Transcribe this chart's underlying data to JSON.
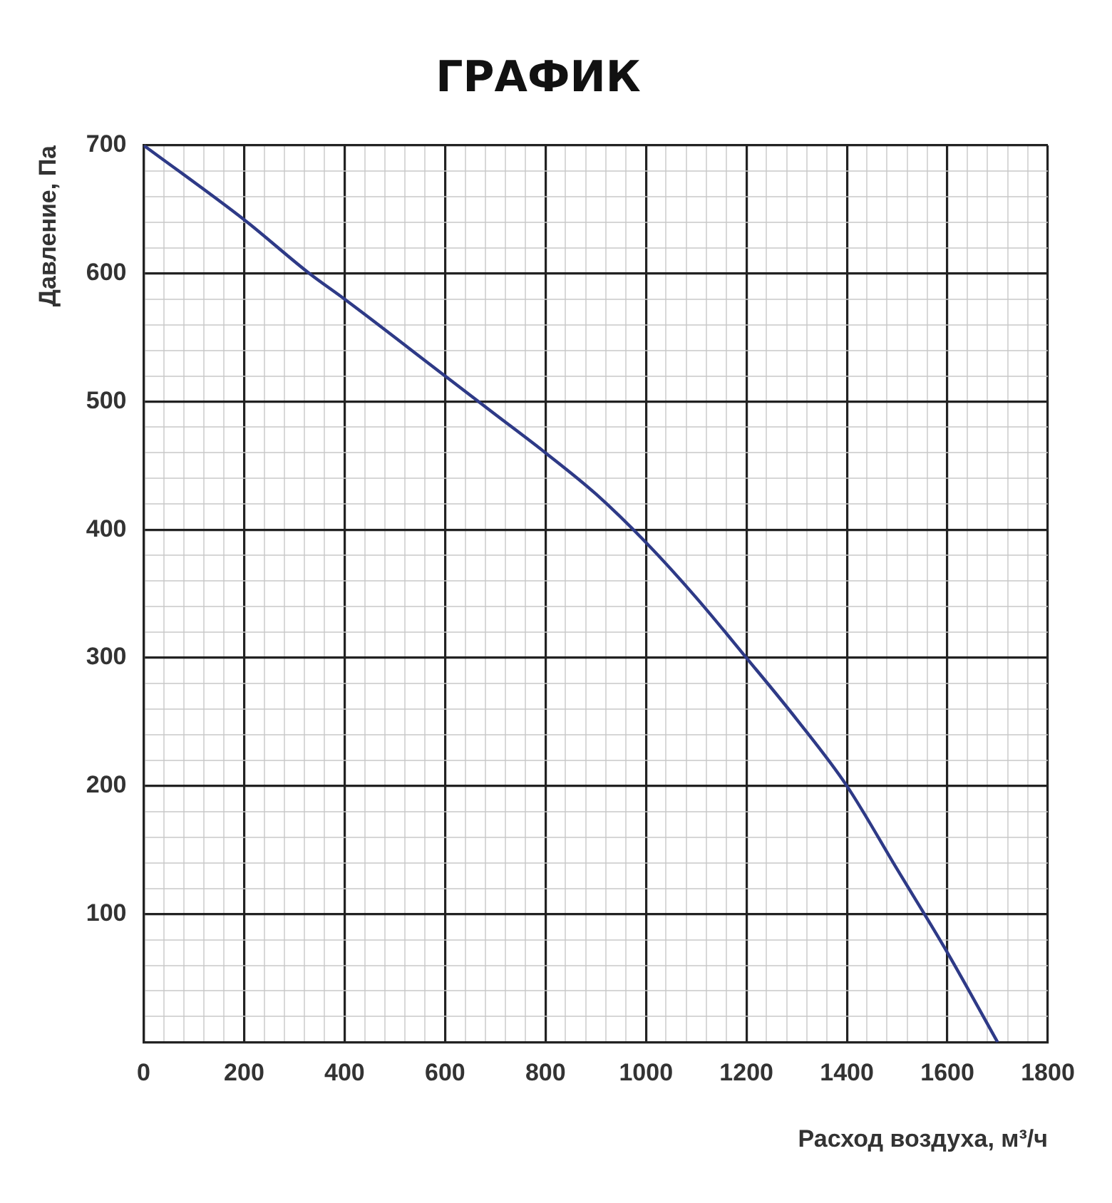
{
  "chart_data": {
    "type": "line",
    "title": "ГРАФИК",
    "xlabel": "Расход воздуха, м³/ч",
    "ylabel": "Давление, Па",
    "x": [
      0,
      200,
      330,
      400,
      600,
      700,
      800,
      900,
      1000,
      1100,
      1200,
      1300,
      1400,
      1500,
      1600,
      1700
    ],
    "series": [
      {
        "color": "#2e3a87",
        "values": [
          700,
          642,
          600,
          580,
          520,
          490,
          460,
          428,
          390,
          347,
          300,
          252,
          200,
          135,
          70,
          0
        ]
      }
    ],
    "xlim": [
      0,
      1800
    ],
    "ylim": [
      0,
      700
    ],
    "xticks": [
      0,
      {
        "value": 40,
        "label": null
      },
      {
        "value": 80,
        "label": null
      },
      {
        "value": 120,
        "label": null
      },
      {
        "value": 160,
        "label": null
      },
      200,
      {
        "value": 240,
        "label": null
      },
      {
        "value": 280,
        "label": null
      },
      {
        "value": 320,
        "label": null
      },
      {
        "value": 360,
        "label": null
      },
      400,
      {
        "value": 440,
        "label": null
      },
      {
        "value": 480,
        "label": null
      },
      {
        "value": 520,
        "label": null
      },
      {
        "value": 560,
        "label": null
      },
      600,
      {
        "value": 640,
        "label": null
      },
      {
        "value": 680,
        "label": null
      },
      {
        "value": 720,
        "label": null
      },
      {
        "value": 760,
        "label": null
      },
      800,
      {
        "value": 840,
        "label": null
      },
      {
        "value": 880,
        "label": null
      },
      {
        "value": 920,
        "label": null
      },
      {
        "value": 960,
        "label": null
      },
      1000,
      {
        "value": 1040,
        "label": null
      },
      {
        "value": 1080,
        "label": null
      },
      {
        "value": 1120,
        "label": null
      },
      {
        "value": 1160,
        "label": null
      },
      1200,
      {
        "value": 1240,
        "label": null
      },
      {
        "value": 1280,
        "label": null
      },
      {
        "value": 1320,
        "label": null
      },
      {
        "value": 1360,
        "label": null
      },
      1400,
      {
        "value": 1440,
        "label": null
      },
      {
        "value": 1480,
        "label": null
      },
      {
        "value": 1520,
        "label": null
      },
      {
        "value": 1560,
        "label": null
      },
      1600,
      {
        "value": 1640,
        "label": null
      },
      {
        "value": 1680,
        "label": null
      },
      {
        "value": 1720,
        "label": null
      },
      {
        "value": 1760,
        "label": null
      },
      1800
    ],
    "yticks": [
      {
        "value": 20,
        "label": null
      },
      {
        "value": 40,
        "label": null
      },
      {
        "value": 60,
        "label": null
      },
      {
        "value": 80,
        "label": null
      },
      100,
      {
        "value": 120,
        "label": null
      },
      {
        "value": 140,
        "label": null
      },
      {
        "value": 160,
        "label": null
      },
      {
        "value": 180,
        "label": null
      },
      200,
      {
        "value": 220,
        "label": null
      },
      {
        "value": 240,
        "label": null
      },
      {
        "value": 260,
        "label": null
      },
      {
        "value": 280,
        "label": null
      },
      300,
      {
        "value": 320,
        "label": null
      },
      {
        "value": 340,
        "label": null
      },
      {
        "value": 360,
        "label": null
      },
      {
        "value": 380,
        "label": null
      },
      400,
      {
        "value": 420,
        "label": null
      },
      {
        "value": 440,
        "label": null
      },
      {
        "value": 460,
        "label": null
      },
      {
        "value": 480,
        "label": null
      },
      500,
      {
        "value": 520,
        "label": null
      },
      {
        "value": 540,
        "label": null
      },
      {
        "value": 560,
        "label": null
      },
      {
        "value": 580,
        "label": null
      },
      600,
      {
        "value": 620,
        "label": null
      },
      {
        "value": 640,
        "label": null
      },
      {
        "value": 660,
        "label": null
      },
      {
        "value": 680,
        "label": null
      },
      700
    ],
    "grid": true,
    "legend": false,
    "marker": "none",
    "line_style": "solid"
  }
}
